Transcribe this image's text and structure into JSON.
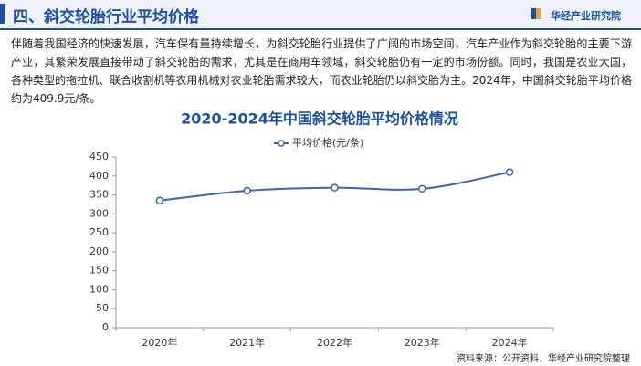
{
  "header": {
    "title": "四、斜交轮胎行业平均价格",
    "brand": "华经产业研究院"
  },
  "paragraph": "伴随着我国经济的快速发展，汽车保有量持续增长，为斜交轮胎行业提供了广阔的市场空间，汽车产业作为斜交轮胎的主要下游产业，其繁荣发展直接带动了斜交轮胎的需求，尤其是在商用车领域，斜交轮胎仍有一定的市场份额。同时，我国是农业大国，各种类型的拖拉机、联合收割机等农用机械对农业轮胎需求较大，而农业轮胎仍以斜交胎为主。2024年，中国斜交轮胎平均价格约为409.9元/条。",
  "source": "资料来源：公开资料，华经产业研究院整理",
  "chart_data": {
    "type": "line",
    "title": "2020-2024年中国斜交轮胎平均价格情况",
    "categories": [
      "2020年",
      "2021年",
      "2022年",
      "2023年",
      "2024年"
    ],
    "series": [
      {
        "name": "平均价格(元/条)",
        "color": "#3b64ad",
        "values": [
          335,
          361,
          369,
          366,
          409.9
        ]
      }
    ],
    "ylim": [
      0,
      450
    ],
    "yticks": [
      0,
      50,
      100,
      150,
      200,
      250,
      300,
      350,
      400,
      450
    ],
    "legend": "top"
  }
}
